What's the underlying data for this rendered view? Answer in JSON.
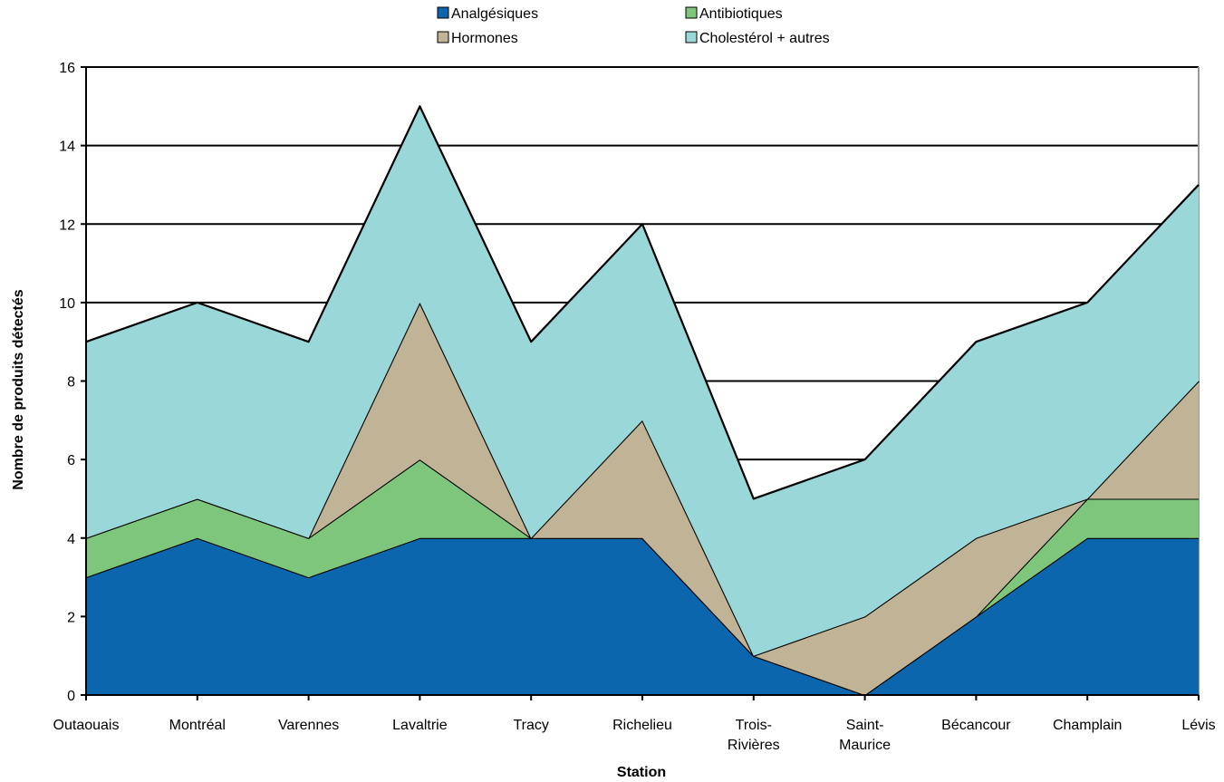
{
  "chart_data": {
    "type": "area",
    "stacked": true,
    "title": "",
    "xlabel": "Station",
    "ylabel": "Nombre de produits détectés",
    "ylim": [
      0,
      16
    ],
    "yticks": [
      0,
      2,
      4,
      6,
      8,
      10,
      12,
      14,
      16
    ],
    "grid": true,
    "legend_position": "top",
    "categories": [
      [
        "Outaouais"
      ],
      [
        "Montréal"
      ],
      [
        "Varennes"
      ],
      [
        "Lavaltrie"
      ],
      [
        "Tracy"
      ],
      [
        "Richelieu"
      ],
      [
        "Trois-",
        "Rivières"
      ],
      [
        "Saint-",
        "Maurice"
      ],
      [
        "Bécancour"
      ],
      [
        "Champlain"
      ],
      [
        "Lévis"
      ]
    ],
    "series": [
      {
        "name": "Analgésiques",
        "color": "#0b66ad",
        "values": [
          3,
          4,
          3,
          4,
          4,
          4,
          1,
          0,
          2,
          4,
          4
        ]
      },
      {
        "name": "Antibiotiques",
        "color": "#7dc67b",
        "values": [
          1,
          1,
          1,
          2,
          0,
          0,
          0,
          0,
          0,
          1,
          1
        ]
      },
      {
        "name": "Hormones",
        "color": "#c1b396",
        "values": [
          0,
          0,
          0,
          4,
          0,
          3,
          0,
          2,
          2,
          0,
          3
        ]
      },
      {
        "name": "Cholestérol + autres",
        "color": "#99d7d8",
        "values": [
          5,
          5,
          5,
          5,
          5,
          5,
          4,
          4,
          5,
          5,
          5
        ]
      }
    ]
  }
}
